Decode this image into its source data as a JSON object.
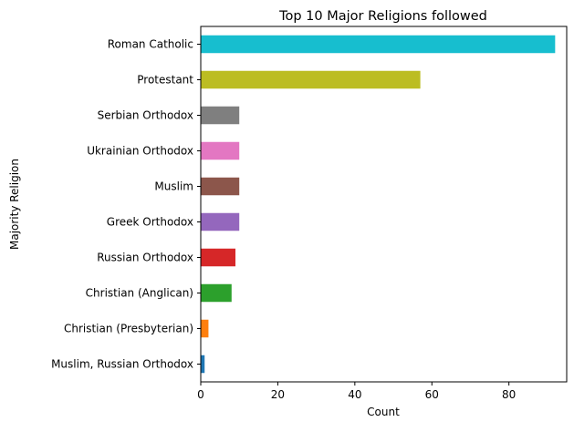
{
  "chart_data": {
    "type": "bar",
    "orientation": "horizontal",
    "title": "Top 10 Major Religions followed",
    "xlabel": "Count",
    "ylabel": "Majority Religion",
    "xlim": [
      0,
      95
    ],
    "xticks": [
      0,
      20,
      40,
      60,
      80
    ],
    "grid": false,
    "categories": [
      "Roman Catholic",
      "Protestant",
      "Serbian Orthodox",
      "Ukrainian Orthodox",
      "Muslim",
      "Greek Orthodox",
      "Russian Orthodox",
      "Christian (Anglican)",
      "Christian (Presbyterian)",
      "Muslim, Russian Orthodox"
    ],
    "values": [
      92,
      57,
      10,
      10,
      10,
      10,
      9,
      8,
      2,
      1
    ],
    "colors": [
      "#17becf",
      "#bcbd22",
      "#7f7f7f",
      "#e377c2",
      "#8c564b",
      "#9467bd",
      "#d62728",
      "#2ca02c",
      "#ff7f0e",
      "#1f77b4"
    ]
  }
}
